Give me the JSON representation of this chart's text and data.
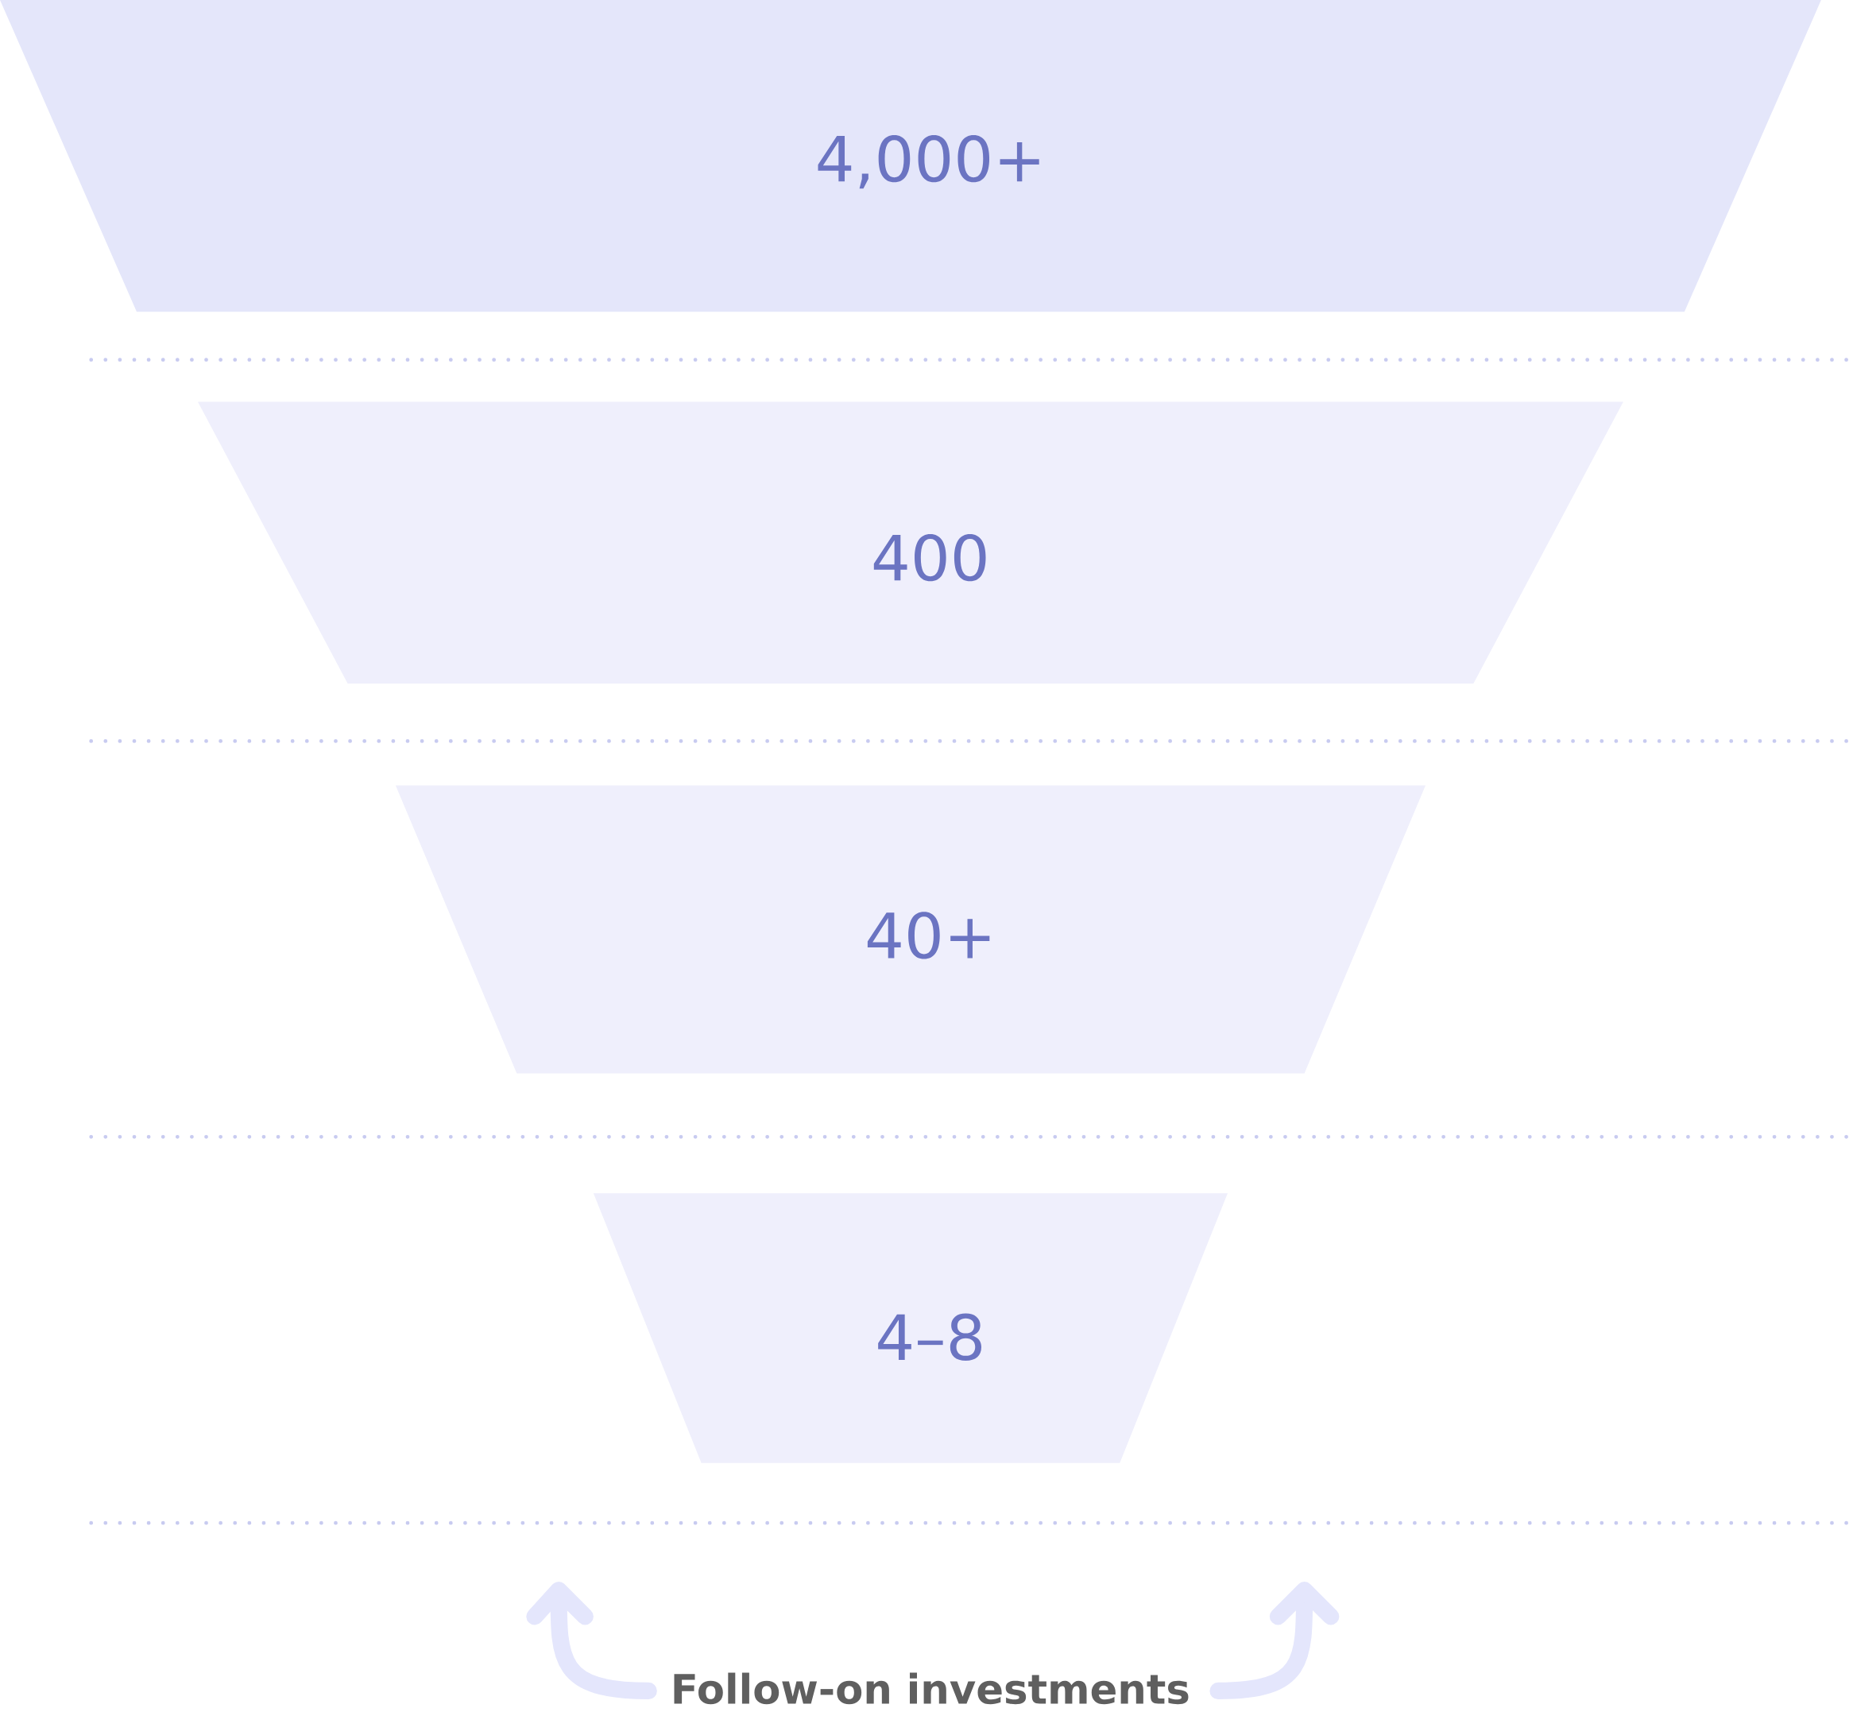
{
  "chart_data": {
    "type": "other",
    "categories": [
      null,
      null,
      null,
      null
    ],
    "values": [
      4000,
      400,
      40,
      4
    ],
    "value_labels": [
      "4,000+",
      "400",
      "40+",
      "4–8"
    ],
    "colors": [
      "#e4e6fa",
      "#efeffc",
      "#efeffc",
      "#efeffc"
    ],
    "annotations": [
      "Follow-on investments"
    ]
  }
}
